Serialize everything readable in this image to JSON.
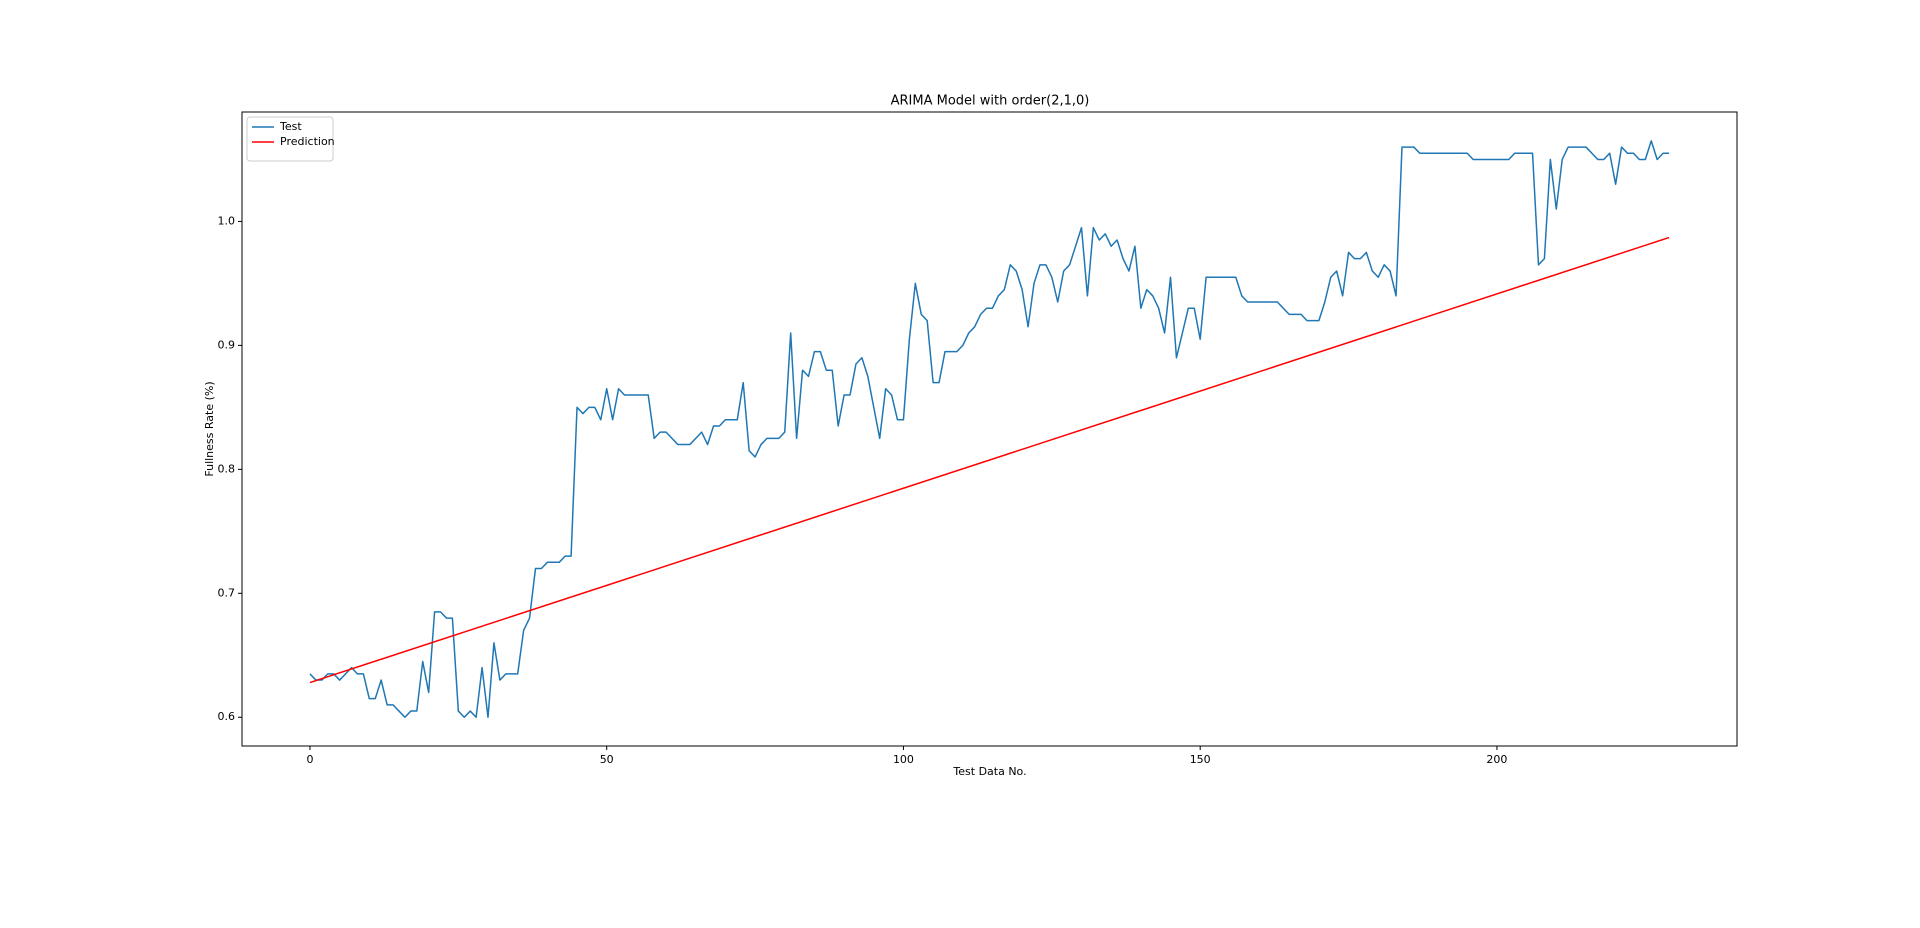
{
  "chart_data": {
    "type": "line",
    "title": "ARIMA Model with order(2,1,0)",
    "x_label": "Test Data No.",
    "y_label": "Fullness Rate (%)",
    "xlim": [
      -11.45,
      240.45
    ],
    "ylim": [
      0.5768,
      1.0883
    ],
    "xticks": [
      0,
      50,
      100,
      150,
      200
    ],
    "yticks": [
      0.6,
      0.7,
      0.8,
      0.9,
      {
        "value": 1,
        "label": "1.0"
      }
    ],
    "legend": "upper left",
    "series": [
      {
        "name": "Test",
        "color": "#1f77b4",
        "x": [
          0,
          1,
          2,
          3,
          4,
          5,
          6,
          7,
          8,
          9,
          10,
          11,
          12,
          13,
          14,
          15,
          16,
          17,
          18,
          19,
          20,
          21,
          22,
          23,
          24,
          25,
          26,
          27,
          28,
          29,
          30,
          31,
          32,
          33,
          34,
          35,
          36,
          37,
          38,
          39,
          40,
          41,
          42,
          43,
          44,
          45,
          46,
          47,
          48,
          49,
          50,
          51,
          52,
          53,
          54,
          55,
          56,
          57,
          58,
          59,
          60,
          61,
          62,
          63,
          64,
          65,
          66,
          67,
          68,
          69,
          70,
          71,
          72,
          73,
          74,
          75,
          76,
          77,
          78,
          79,
          80,
          81,
          82,
          83,
          84,
          85,
          86,
          87,
          88,
          89,
          90,
          91,
          92,
          93,
          94,
          95,
          96,
          97,
          98,
          99,
          100,
          101,
          102,
          103,
          104,
          105,
          106,
          107,
          108,
          109,
          110,
          111,
          112,
          113,
          114,
          115,
          116,
          117,
          118,
          119,
          120,
          121,
          122,
          123,
          124,
          125,
          126,
          127,
          128,
          129,
          130,
          131,
          132,
          133,
          134,
          135,
          136,
          137,
          138,
          139,
          140,
          141,
          142,
          143,
          144,
          145,
          146,
          147,
          148,
          149,
          150,
          151,
          152,
          153,
          154,
          155,
          156,
          157,
          158,
          159,
          160,
          161,
          162,
          163,
          164,
          165,
          166,
          167,
          168,
          169,
          170,
          171,
          172,
          173,
          174,
          175,
          176,
          177,
          178,
          179,
          180,
          181,
          182,
          183,
          184,
          185,
          186,
          187,
          188,
          189,
          190,
          191,
          192,
          193,
          194,
          195,
          196,
          197,
          198,
          199,
          200,
          201,
          202,
          203,
          204,
          205,
          206,
          207,
          208,
          209,
          210,
          211,
          212,
          213,
          214,
          215,
          216,
          217,
          218,
          219,
          220,
          221,
          222,
          223,
          224,
          225,
          226,
          227,
          228,
          229
        ],
        "values": [
          0.635,
          0.63,
          0.63,
          0.635,
          0.635,
          0.63,
          0.635,
          0.64,
          0.635,
          0.635,
          0.615,
          0.615,
          0.63,
          0.61,
          0.61,
          0.605,
          0.6,
          0.605,
          0.605,
          0.645,
          0.62,
          0.685,
          0.685,
          0.68,
          0.68,
          0.605,
          0.6,
          0.605,
          0.6,
          0.64,
          0.6,
          0.66,
          0.63,
          0.635,
          0.635,
          0.635,
          0.67,
          0.68,
          0.72,
          0.72,
          0.725,
          0.725,
          0.725,
          0.73,
          0.73,
          0.85,
          0.845,
          0.85,
          0.85,
          0.84,
          0.865,
          0.84,
          0.865,
          0.86,
          0.86,
          0.86,
          0.86,
          0.86,
          0.825,
          0.83,
          0.83,
          0.825,
          0.82,
          0.82,
          0.82,
          0.825,
          0.83,
          0.82,
          0.835,
          0.835,
          0.84,
          0.84,
          0.84,
          0.87,
          0.815,
          0.81,
          0.82,
          0.825,
          0.825,
          0.825,
          0.83,
          0.91,
          0.825,
          0.88,
          0.875,
          0.895,
          0.895,
          0.88,
          0.88,
          0.835,
          0.86,
          0.86,
          0.885,
          0.89,
          0.875,
          0.85,
          0.825,
          0.865,
          0.86,
          0.84,
          0.84,
          0.905,
          0.95,
          0.925,
          0.92,
          0.87,
          0.87,
          0.895,
          0.895,
          0.895,
          0.9,
          0.91,
          0.915,
          0.925,
          0.93,
          0.93,
          0.94,
          0.945,
          0.965,
          0.96,
          0.945,
          0.915,
          0.95,
          0.965,
          0.965,
          0.955,
          0.935,
          0.96,
          0.965,
          0.98,
          0.995,
          0.94,
          0.995,
          0.985,
          0.99,
          0.98,
          0.985,
          0.97,
          0.96,
          0.98,
          0.93,
          0.945,
          0.94,
          0.93,
          0.91,
          0.955,
          0.89,
          0.91,
          0.93,
          0.93,
          0.905,
          0.955,
          0.955,
          0.955,
          0.955,
          0.955,
          0.955,
          0.94,
          0.935,
          0.935,
          0.935,
          0.935,
          0.935,
          0.935,
          0.93,
          0.925,
          0.925,
          0.925,
          0.92,
          0.92,
          0.92,
          0.935,
          0.955,
          0.96,
          0.94,
          0.975,
          0.97,
          0.97,
          0.975,
          0.96,
          0.955,
          0.965,
          0.96,
          0.94,
          1.06,
          1.06,
          1.06,
          1.055,
          1.055,
          1.055,
          1.055,
          1.055,
          1.055,
          1.055,
          1.055,
          1.055,
          1.05,
          1.05,
          1.05,
          1.05,
          1.05,
          1.05,
          1.05,
          1.055,
          1.055,
          1.055,
          1.055,
          0.965,
          0.97,
          1.05,
          1.01,
          1.05,
          1.06,
          1.06,
          1.06,
          1.06,
          1.055,
          1.05,
          1.05,
          1.055,
          1.03,
          1.06,
          1.055,
          1.055,
          1.05,
          1.05,
          1.065,
          1.05,
          1.055,
          1.055
        ]
      },
      {
        "name": "Prediction",
        "color": "#ff0000",
        "x": [
          0,
          229
        ],
        "values": [
          0.628,
          0.987
        ]
      }
    ]
  }
}
